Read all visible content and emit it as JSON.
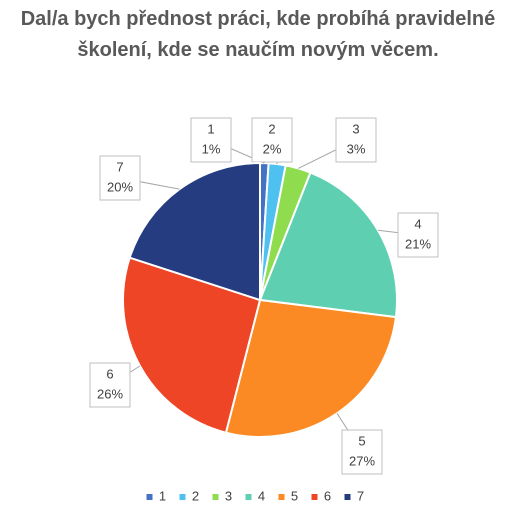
{
  "chart_data": {
    "type": "pie",
    "title": "Dal/a bych přednost práci, kde probíhá pravidelné školení, kde se naučím novým věcem.",
    "categories": [
      "1",
      "2",
      "3",
      "4",
      "5",
      "6",
      "7"
    ],
    "values": [
      1,
      2,
      3,
      21,
      27,
      26,
      20
    ],
    "value_labels": [
      "1%",
      "2%",
      "3%",
      "21%",
      "27%",
      "26%",
      "20%"
    ],
    "colors": [
      "#4472c4",
      "#4fc1f0",
      "#8fdc4e",
      "#5ecfb1",
      "#fb8a24",
      "#ee4526",
      "#263c80"
    ],
    "legend": "bottom"
  }
}
